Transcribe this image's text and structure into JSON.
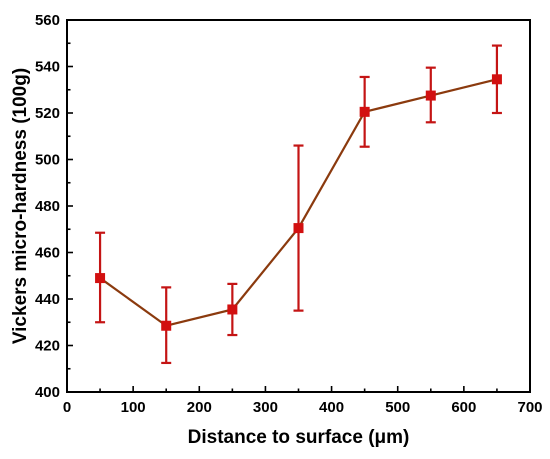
{
  "chart_data": {
    "type": "line",
    "title": "",
    "xlabel": "Distance to surface (μm)",
    "ylabel": "Vickers micro-hardness (100g)",
    "xlim": [
      0,
      700
    ],
    "ylim": [
      400,
      560
    ],
    "xticks": [
      0,
      100,
      200,
      300,
      400,
      500,
      600,
      700
    ],
    "yticks": [
      400,
      420,
      440,
      460,
      480,
      500,
      520,
      540,
      560
    ],
    "grid": false,
    "legend": "none",
    "series": [
      {
        "x": [
          50,
          150,
          250,
          350,
          450,
          550,
          650
        ],
        "y": [
          449,
          428.5,
          435.5,
          470.5,
          520.5,
          527.5,
          534.5
        ],
        "error_low": [
          430,
          412.5,
          424.5,
          435,
          505.5,
          516,
          520
        ],
        "error_high": [
          468.5,
          445,
          446.5,
          506,
          535.5,
          539.5,
          549
        ],
        "line_color": "#8b3a0e",
        "marker_color": "#d21010",
        "errorbar_color": "#c41414",
        "marker": "square"
      }
    ]
  }
}
